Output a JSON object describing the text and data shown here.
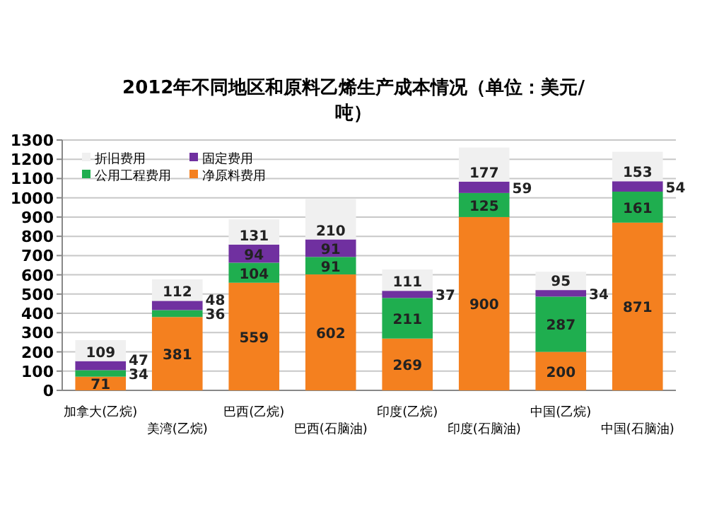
{
  "chart_data": {
    "type": "bar",
    "stacked": true,
    "title": "2012年不同地区和原料乙烯生产成本情况（单位：美元/吨）",
    "categories": [
      "加拿大(乙烷)",
      "美湾(乙烷)",
      "巴西(乙烷)",
      "巴西(石脑油)",
      "印度(乙烷)",
      "印度(石脑油)",
      "中国(乙烷)",
      "中国(石脑油)"
    ],
    "series": [
      {
        "name": "净原料费用",
        "color": "#f4801f",
        "values": [
          71,
          381,
          559,
          602,
          269,
          900,
          200,
          871
        ]
      },
      {
        "name": "公用工程费用",
        "color": "#1fae4f",
        "values": [
          34,
          36,
          104,
          91,
          211,
          125,
          287,
          161
        ]
      },
      {
        "name": "固定费用",
        "color": "#7030a0",
        "values": [
          47,
          48,
          94,
          91,
          37,
          59,
          34,
          54
        ]
      },
      {
        "name": "折旧费用",
        "color": "#f0f0f0",
        "values": [
          109,
          112,
          131,
          210,
          111,
          177,
          95,
          153
        ]
      }
    ],
    "ylim": [
      0,
      1300
    ],
    "yticks": [
      0,
      100,
      200,
      300,
      400,
      500,
      600,
      700,
      800,
      900,
      1000,
      1100,
      1200,
      1300
    ],
    "grid": "y",
    "legend": "top left",
    "data_labels": true
  }
}
